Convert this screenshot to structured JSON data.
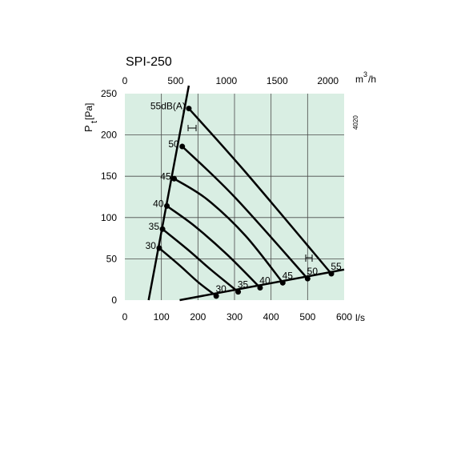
{
  "chart_data": {
    "type": "line",
    "title": "SPI-250",
    "code": "4020",
    "colors": {
      "plot_bg": "#d9eee3",
      "grid": "#4a4a4a",
      "line": "#000000"
    },
    "x_axis": {
      "label": "l/s",
      "range": [
        0,
        600
      ],
      "ticks": [
        0,
        100,
        200,
        300,
        400,
        500,
        600
      ],
      "tick_labels": [
        "0",
        "100",
        "200",
        "300",
        "400",
        "500",
        "600"
      ]
    },
    "x2_axis": {
      "label_base": "m",
      "label_exp": "3",
      "label_tail": "/h",
      "range": [
        0,
        2160
      ],
      "ticks": [
        0,
        500,
        1000,
        1500,
        2000
      ],
      "tick_labels": [
        "0",
        "500",
        "1000",
        "1500",
        "2000"
      ]
    },
    "y_axis": {
      "label_main": "P",
      "label_sub": "t",
      "label_unit": "[Pa]",
      "range": [
        0,
        250
      ],
      "ticks": [
        0,
        50,
        100,
        150,
        200,
        250
      ],
      "tick_labels": [
        "0",
        "50",
        "100",
        "150",
        "200",
        "250"
      ]
    },
    "grid": true,
    "boundary_left": {
      "x": [
        65,
        175
      ],
      "y": [
        0,
        250
      ]
    },
    "boundary_bottom": {
      "x": [
        150,
        600
      ],
      "y": [
        0,
        37
      ]
    },
    "curves": [
      {
        "label": "30",
        "x": [
          94,
          150,
          200,
          250
        ],
        "y": [
          63,
          42,
          22,
          5
        ]
      },
      {
        "label": "35",
        "x": [
          103,
          170,
          235,
          310
        ],
        "y": [
          86,
          62,
          37,
          10
        ]
      },
      {
        "label": "40",
        "x": [
          115,
          190,
          280,
          370
        ],
        "y": [
          114,
          90,
          55,
          15
        ]
      },
      {
        "label": "45",
        "x": [
          135,
          225,
          330,
          432
        ],
        "y": [
          147,
          122,
          78,
          21
        ]
      },
      {
        "label": "50",
        "x": [
          157,
          300,
          500
        ],
        "y": [
          186,
          125,
          26
        ]
      },
      {
        "label": "55dB(A)",
        "x": [
          175,
          330,
          565
        ],
        "y": [
          232,
          155,
          32
        ]
      }
    ],
    "bottom_point_labels": [
      "30",
      "35",
      "40",
      "45",
      "50",
      "55"
    ]
  }
}
